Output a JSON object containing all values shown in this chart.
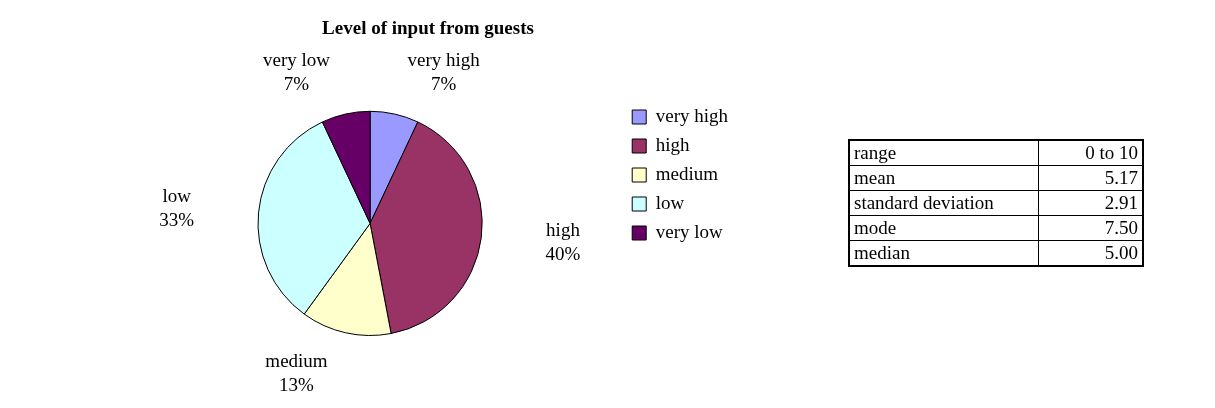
{
  "chart_data": [
    {
      "type": "pie",
      "title": "Level of input from guests",
      "categories": [
        "very high",
        "high",
        "medium",
        "low",
        "very low"
      ],
      "values": [
        7,
        40,
        13,
        33,
        7
      ],
      "colors": [
        "#9999ff",
        "#993366",
        "#ffffcc",
        "#ccffff",
        "#660066"
      ],
      "value_labels": [
        "7%",
        "40%",
        "13%",
        "33%",
        "7%"
      ],
      "legend": "right"
    },
    {
      "type": "other",
      "annotations": [
        "range",
        "0 to 10",
        "mean",
        "5.17",
        "standard deviation",
        "2.91",
        "mode",
        "7.50",
        "median",
        "5.00"
      ]
    }
  ]
}
